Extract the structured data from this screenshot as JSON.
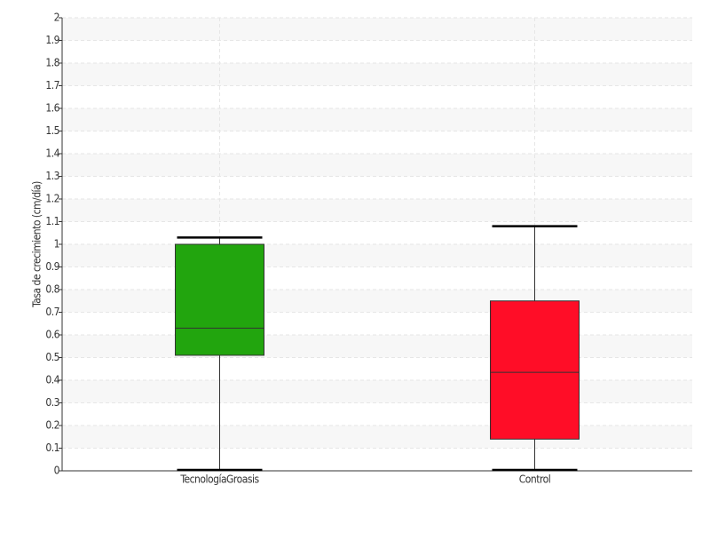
{
  "chart_data": {
    "type": "box",
    "y_label": "Tasa de crecimiento (cm/día)",
    "categories": [
      "TecnologíaGroasis",
      "Control"
    ],
    "boxes": [
      {
        "min": 0,
        "q1": 0.51,
        "median": 0.63,
        "q3": 1.0,
        "max": 1.03,
        "color": "#22a50e"
      },
      {
        "min": 0,
        "q1": 0.14,
        "median": 0.435,
        "q3": 0.75,
        "max": 1.08,
        "color": "#ff0d27"
      }
    ],
    "ylim": [
      0,
      2
    ],
    "yticks": [
      0,
      0.1,
      0.2,
      0.3,
      0.4,
      0.5,
      0.6,
      0.7,
      0.8,
      0.9,
      1,
      1.1,
      1.2,
      1.3,
      1.4,
      1.5,
      1.6,
      1.7,
      1.8,
      1.9,
      2
    ],
    "grid": true
  }
}
